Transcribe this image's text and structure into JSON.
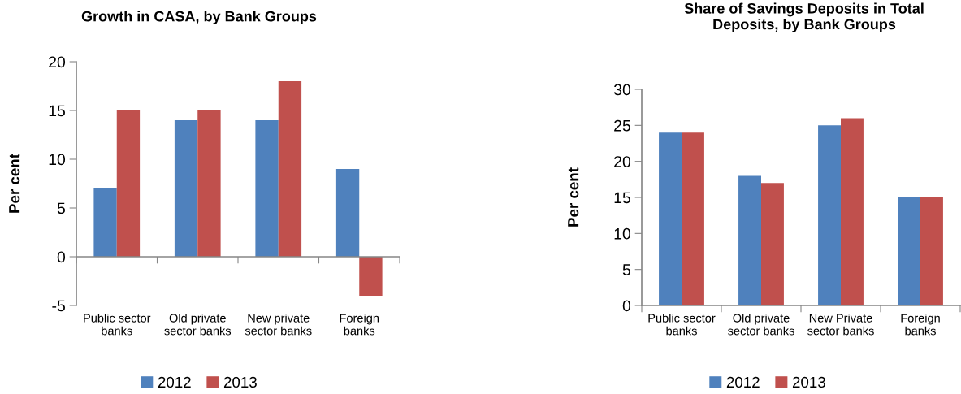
{
  "chart_data": [
    {
      "type": "bar",
      "title": "Growth in CASA, by Bank Groups",
      "ylabel": "Per cent",
      "categories": [
        "Public sector\nbanks",
        "Old private\nsector banks",
        "New private\nsector banks",
        "Foreign\nbanks"
      ],
      "series": [
        {
          "name": "2012",
          "color": "#4f81bd",
          "values": [
            7,
            14,
            14,
            9
          ]
        },
        {
          "name": "2013",
          "color": "#c0504d",
          "values": [
            15,
            15,
            18,
            -4
          ]
        }
      ],
      "ylim": [
        -5,
        20
      ],
      "yticks": [
        -5,
        0,
        5,
        10,
        15,
        20
      ],
      "legend": "bottom"
    },
    {
      "type": "bar",
      "title": "Share of Savings Deposits in Total\nDeposits, by Bank Groups",
      "ylabel": "Per cent",
      "categories": [
        "Public sector\nbanks",
        "Old private\nsector banks",
        "New Private\nsector banks",
        "Foreign\nbanks"
      ],
      "series": [
        {
          "name": "2012",
          "color": "#4f81bd",
          "values": [
            24,
            18,
            25,
            15
          ]
        },
        {
          "name": "2013",
          "color": "#c0504d",
          "values": [
            24,
            17,
            26,
            15
          ]
        }
      ],
      "ylim": [
        0,
        30
      ],
      "yticks": [
        0,
        5,
        10,
        15,
        20,
        25,
        30
      ],
      "legend": "bottom"
    }
  ]
}
